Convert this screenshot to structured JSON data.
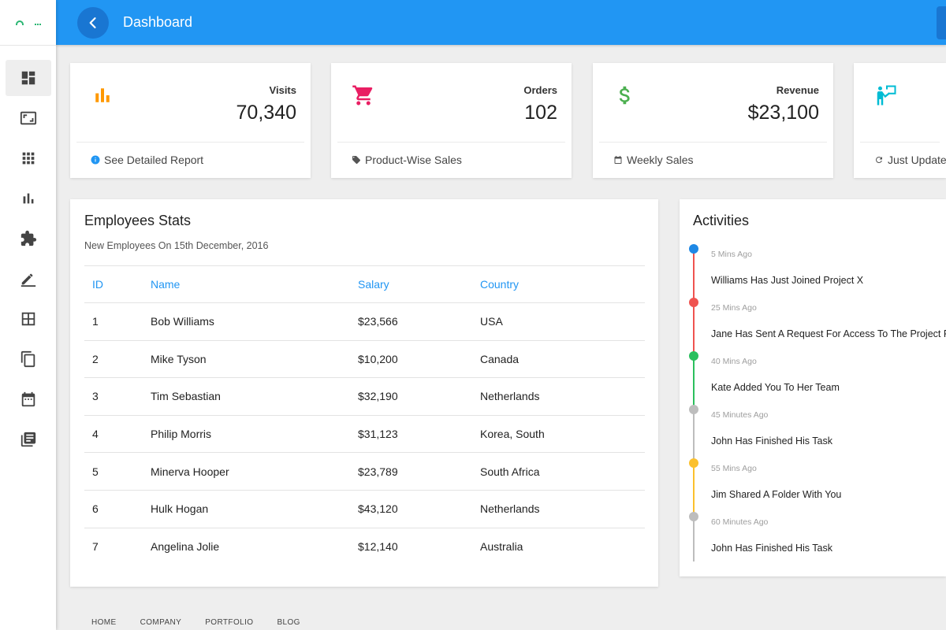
{
  "header": {
    "title": "Dashboard"
  },
  "sidebar": {
    "items": [
      {
        "icon": "dashboard-icon"
      },
      {
        "icon": "aspect-ratio-icon"
      },
      {
        "icon": "apps-grid-icon"
      },
      {
        "icon": "bar-chart-icon"
      },
      {
        "icon": "puzzle-icon"
      },
      {
        "icon": "pencil-icon"
      },
      {
        "icon": "table-icon"
      },
      {
        "icon": "copy-icon"
      },
      {
        "icon": "calendar-icon"
      },
      {
        "icon": "library-books-icon"
      }
    ]
  },
  "stats": [
    {
      "label": "Visits",
      "value": "70,340",
      "footer": "See Detailed Report",
      "icon": "bar-chart-icon",
      "color": "#ff9800"
    },
    {
      "label": "Orders",
      "value": "102",
      "footer": "Product-Wise Sales",
      "icon": "shopping-cart-icon",
      "color": "#e91e63"
    },
    {
      "label": "Revenue",
      "value": "$23,100",
      "footer": "Weekly Sales",
      "icon": "dollar-icon",
      "color": "#4caf50"
    },
    {
      "label": "",
      "value": "",
      "footer": "Just Updated",
      "icon": "presenter-icon",
      "color": "#00bcd4"
    }
  ],
  "employees": {
    "title": "Employees Stats",
    "subtitle": "New Employees On 15th December, 2016",
    "columns": [
      "ID",
      "Name",
      "Salary",
      "Country"
    ],
    "rows": [
      [
        "1",
        "Bob Williams",
        "$23,566",
        "USA"
      ],
      [
        "2",
        "Mike Tyson",
        "$10,200",
        "Canada"
      ],
      [
        "3",
        "Tim Sebastian",
        "$32,190",
        "Netherlands"
      ],
      [
        "4",
        "Philip Morris",
        "$31,123",
        "Korea, South"
      ],
      [
        "5",
        "Minerva Hooper",
        "$23,789",
        "South Africa"
      ],
      [
        "6",
        "Hulk Hogan",
        "$43,120",
        "Netherlands"
      ],
      [
        "7",
        "Angelina Jolie",
        "$12,140",
        "Australia"
      ]
    ]
  },
  "activities": {
    "title": "Activities",
    "items": [
      {
        "time": "5 Mins Ago",
        "text": "Williams Has Just Joined Project X",
        "color": "#1e88e5"
      },
      {
        "time": "25 Mins Ago",
        "text": "Jane Has Sent A Request For Access To The Project Fo",
        "color": "#ef5350"
      },
      {
        "time": "40 Mins Ago",
        "text": "Kate Added You To Her Team",
        "color": "#2bbf5d"
      },
      {
        "time": "45 Minutes Ago",
        "text": "John Has Finished His Task",
        "color": "#bdbdbd"
      },
      {
        "time": "55 Mins Ago",
        "text": "Jim Shared A Folder With You",
        "color": "#fbc02d"
      },
      {
        "time": "60 Minutes Ago",
        "text": "John Has Finished His Task",
        "color": "#bdbdbd"
      }
    ]
  },
  "footer": {
    "links": [
      "HOME",
      "COMPANY",
      "PORTFOLIO",
      "BLOG"
    ]
  }
}
